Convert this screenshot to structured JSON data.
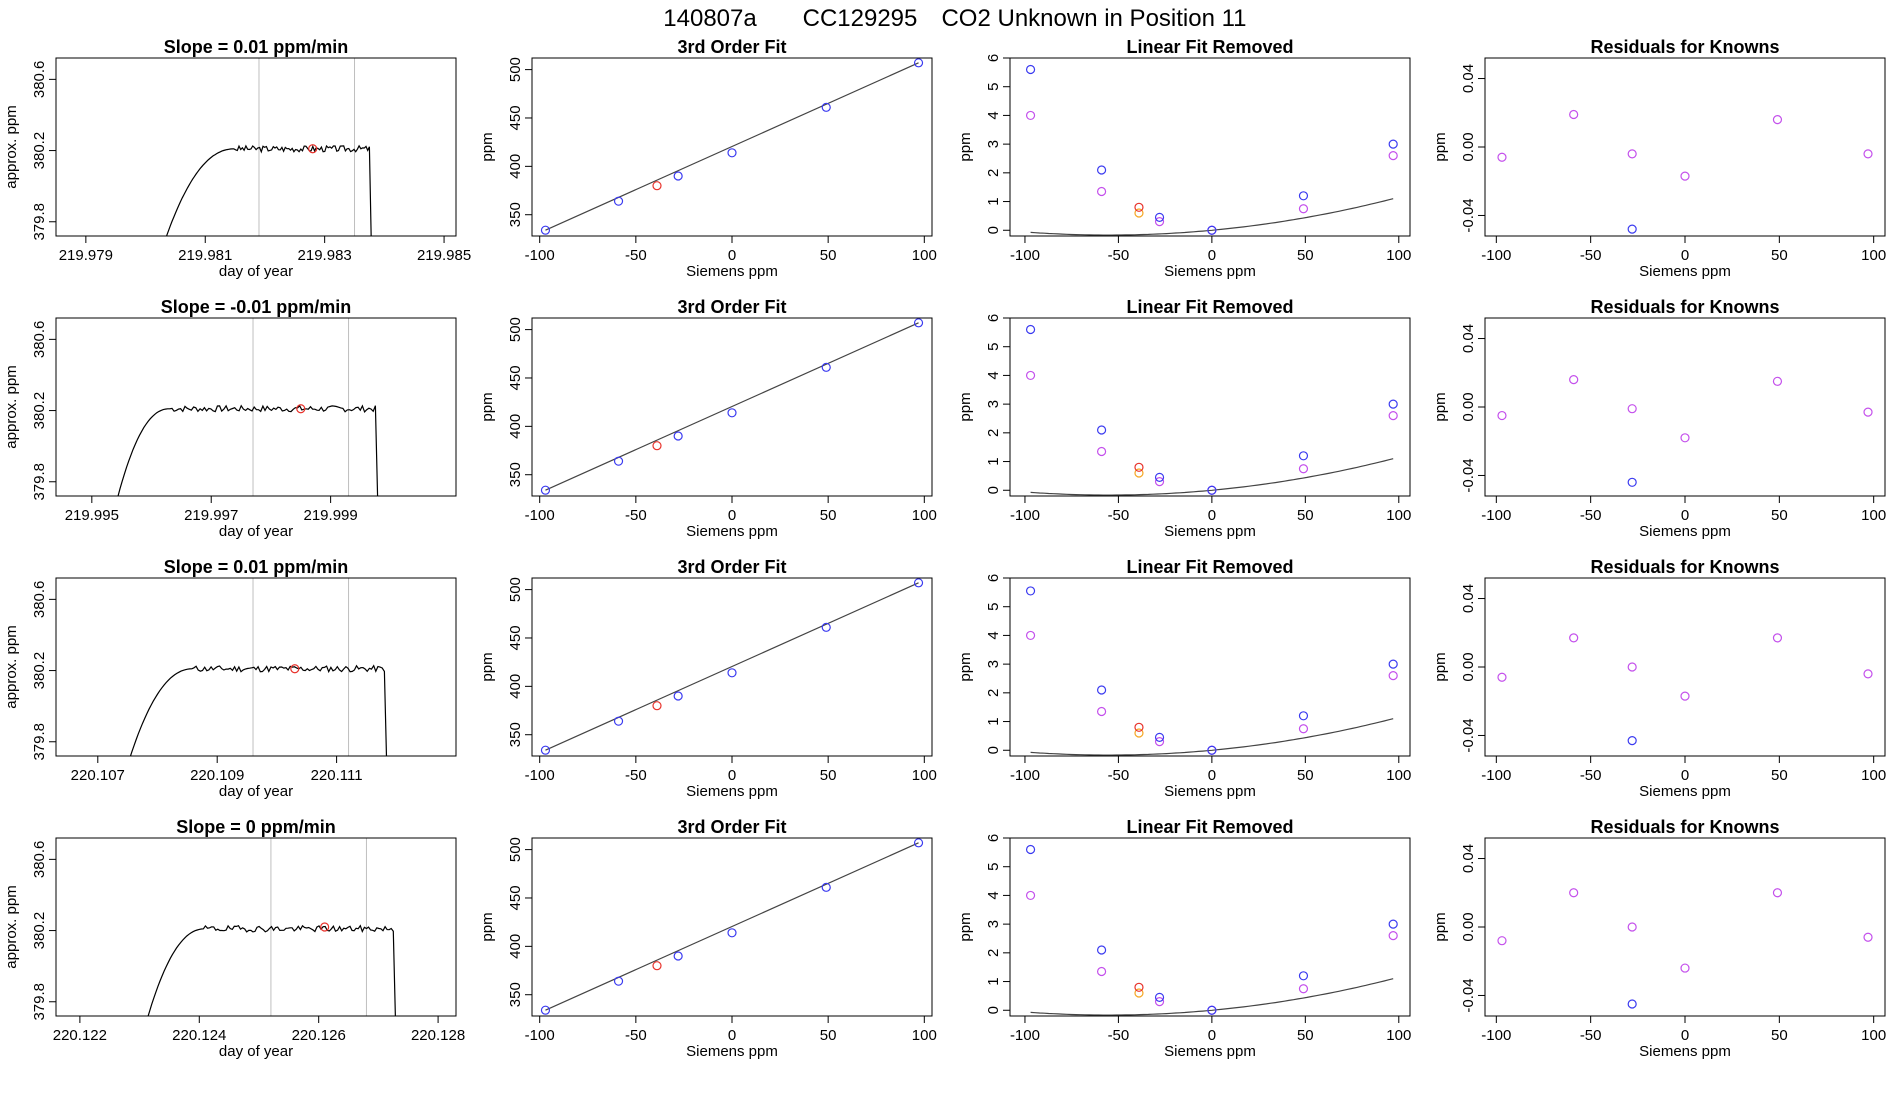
{
  "figure": {
    "title_parts": [
      "140807a",
      "CC129295",
      "CO2 Unknown in Position  11"
    ]
  },
  "colors": {
    "axis": "#000000",
    "trace": "#000000",
    "vline": "#bfbfbf",
    "point_red": "#e8312a",
    "point_blue": "#3a3af0",
    "point_magenta": "#c450ec",
    "point_orange": "#f5a623",
    "curve": "#444444"
  },
  "chart_data": [
    {
      "type": "line",
      "row": 1,
      "title": "Slope =  0.01  ppm/min",
      "xlabel": "day of year",
      "ylabel": "approx. ppm",
      "x_ticks": [
        "219.979",
        "219.981",
        "219.983",
        "219.985"
      ],
      "y_ticks": [
        "379.8",
        "380.2",
        "380.6"
      ],
      "xlim": [
        219.9785,
        219.9852
      ],
      "ylim": [
        379.72,
        380.72
      ],
      "vlines": [
        219.9819,
        219.9835
      ],
      "marker": {
        "x": 219.9828,
        "y": 380.21
      },
      "trace_start": 219.9803,
      "trace_plateau_start": 219.9815,
      "trace_end": 219.98375,
      "plateau": 380.21,
      "seed": 3
    },
    {
      "type": "line",
      "row": 2,
      "title": "Slope =  -0.01  ppm/min",
      "xlabel": "day of year",
      "ylabel": "approx. ppm",
      "x_ticks": [
        "219.995",
        "219.997",
        "219.999"
      ],
      "y_ticks": [
        "379.8",
        "380.2",
        "380.6"
      ],
      "xlim": [
        219.9944,
        220.0011
      ],
      "ylim": [
        379.72,
        380.72
      ],
      "vlines": [
        219.9977,
        219.9993
      ],
      "marker": {
        "x": 219.9985,
        "y": 380.21
      },
      "trace_start": 219.9954,
      "trace_plateau_start": 219.9963,
      "trace_end": 219.99975,
      "plateau": 380.21,
      "seed": 7
    },
    {
      "type": "line",
      "row": 3,
      "title": "Slope =  0.01  ppm/min",
      "xlabel": "day of year",
      "ylabel": "approx. ppm",
      "x_ticks": [
        "220.107",
        "220.109",
        "220.111"
      ],
      "y_ticks": [
        "379.8",
        "380.2",
        "380.6"
      ],
      "xlim": [
        220.1063,
        220.113
      ],
      "ylim": [
        379.72,
        380.72
      ],
      "vlines": [
        220.1096,
        220.1112
      ],
      "marker": {
        "x": 220.1103,
        "y": 380.21
      },
      "trace_start": 220.1075,
      "trace_plateau_start": 220.1086,
      "trace_end": 220.1118,
      "plateau": 380.21,
      "seed": 11
    },
    {
      "type": "line",
      "row": 4,
      "title": "Slope =  0  ppm/min",
      "xlabel": "day of year",
      "ylabel": "approx. ppm",
      "x_ticks": [
        "220.122",
        "220.124",
        "220.126",
        "220.128"
      ],
      "y_ticks": [
        "379.8",
        "380.2",
        "380.6"
      ],
      "xlim": [
        220.1216,
        220.1283
      ],
      "ylim": [
        379.72,
        380.72
      ],
      "vlines": [
        220.1252,
        220.1268
      ],
      "marker": {
        "x": 220.1261,
        "y": 380.22
      },
      "trace_start": 220.1231,
      "trace_plateau_start": 220.1241,
      "trace_end": 220.12725,
      "plateau": 380.21,
      "seed": 19
    },
    {
      "type": "line",
      "row": 1,
      "title": "3rd Order Fit",
      "xlabel": "Siemens ppm",
      "ylabel": "ppm",
      "x_ticks": [
        "-100",
        "-50",
        "0",
        "50",
        "100"
      ],
      "y_ticks": [
        "350",
        "400",
        "450",
        "500"
      ],
      "xlim": [
        -104,
        104
      ],
      "ylim": [
        328,
        512
      ],
      "fit_line": [
        [
          -97,
          334
        ],
        [
          97,
          507
        ]
      ],
      "points_blue": [
        [
          -97,
          334
        ],
        [
          -59,
          364
        ],
        [
          -28,
          390
        ],
        [
          0,
          414
        ],
        [
          49,
          461
        ],
        [
          97,
          507
        ]
      ],
      "points_red": [
        [
          -39,
          380
        ]
      ]
    },
    {
      "type": "line",
      "row": 2,
      "title": "3rd Order Fit",
      "xlabel": "Siemens ppm",
      "ylabel": "ppm",
      "x_ticks": [
        "-100",
        "-50",
        "0",
        "50",
        "100"
      ],
      "y_ticks": [
        "350",
        "400",
        "450",
        "500"
      ],
      "xlim": [
        -104,
        104
      ],
      "ylim": [
        328,
        512
      ],
      "fit_line": [
        [
          -97,
          334
        ],
        [
          97,
          507
        ]
      ],
      "points_blue": [
        [
          -97,
          334
        ],
        [
          -59,
          364
        ],
        [
          -28,
          390
        ],
        [
          0,
          414
        ],
        [
          49,
          461
        ],
        [
          97,
          507
        ]
      ],
      "points_red": [
        [
          -39,
          380
        ]
      ]
    },
    {
      "type": "line",
      "row": 3,
      "title": "3rd Order Fit",
      "xlabel": "Siemens ppm",
      "ylabel": "ppm",
      "x_ticks": [
        "-100",
        "-50",
        "0",
        "50",
        "100"
      ],
      "y_ticks": [
        "350",
        "400",
        "450",
        "500"
      ],
      "xlim": [
        -104,
        104
      ],
      "ylim": [
        328,
        512
      ],
      "fit_line": [
        [
          -97,
          334
        ],
        [
          97,
          507
        ]
      ],
      "points_blue": [
        [
          -97,
          334
        ],
        [
          -59,
          364
        ],
        [
          -28,
          390
        ],
        [
          0,
          414
        ],
        [
          49,
          461
        ],
        [
          97,
          507
        ]
      ],
      "points_red": [
        [
          -39,
          380
        ]
      ]
    },
    {
      "type": "line",
      "row": 4,
      "title": "3rd Order Fit",
      "xlabel": "Siemens ppm",
      "ylabel": "ppm",
      "x_ticks": [
        "-100",
        "-50",
        "0",
        "50",
        "100"
      ],
      "y_ticks": [
        "350",
        "400",
        "450",
        "500"
      ],
      "xlim": [
        -104,
        104
      ],
      "ylim": [
        328,
        512
      ],
      "fit_line": [
        [
          -97,
          334
        ],
        [
          97,
          507
        ]
      ],
      "points_blue": [
        [
          -97,
          334
        ],
        [
          -59,
          364
        ],
        [
          -28,
          390
        ],
        [
          0,
          414
        ],
        [
          49,
          461
        ],
        [
          97,
          507
        ]
      ],
      "points_red": [
        [
          -39,
          380
        ]
      ]
    },
    {
      "type": "scatter",
      "row": 1,
      "title": "Linear Fit Removed",
      "xlabel": "Siemens ppm",
      "ylabel": "ppm",
      "x_ticks": [
        "-100",
        "-50",
        "0",
        "50",
        "100"
      ],
      "y_ticks": [
        "0",
        "1",
        "2",
        "3",
        "4",
        "5",
        "6"
      ],
      "xlim": [
        -108,
        106
      ],
      "ylim": [
        -0.2,
        6.0
      ],
      "curve_poly": [
        0.0,
        0.00605,
        5.45e-05
      ],
      "curve_range": [
        -97,
        97
      ],
      "points_blue": [
        [
          -97,
          5.6
        ],
        [
          -59,
          2.1
        ],
        [
          -28,
          0.45
        ],
        [
          0,
          0.0
        ],
        [
          49,
          1.2
        ],
        [
          97,
          3.0
        ]
      ],
      "points_magenta": [
        [
          -97,
          4.0
        ],
        [
          -59,
          1.35
        ],
        [
          -28,
          0.3
        ],
        [
          0,
          0.0
        ],
        [
          49,
          0.75
        ],
        [
          97,
          2.6
        ]
      ],
      "points_orange": [
        [
          -39,
          0.6
        ]
      ],
      "points_red": [
        [
          -39,
          0.8
        ]
      ]
    },
    {
      "type": "scatter",
      "row": 2,
      "title": "Linear Fit Removed",
      "xlabel": "Siemens ppm",
      "ylabel": "ppm",
      "x_ticks": [
        "-100",
        "-50",
        "0",
        "50",
        "100"
      ],
      "y_ticks": [
        "0",
        "1",
        "2",
        "3",
        "4",
        "5",
        "6"
      ],
      "xlim": [
        -108,
        106
      ],
      "ylim": [
        -0.2,
        6.0
      ],
      "curve_poly": [
        0.0,
        0.00605,
        5.45e-05
      ],
      "curve_range": [
        -97,
        97
      ],
      "points_blue": [
        [
          -97,
          5.6
        ],
        [
          -59,
          2.1
        ],
        [
          -28,
          0.45
        ],
        [
          0,
          0.0
        ],
        [
          49,
          1.2
        ],
        [
          97,
          3.0
        ]
      ],
      "points_magenta": [
        [
          -97,
          4.0
        ],
        [
          -59,
          1.35
        ],
        [
          -28,
          0.3
        ],
        [
          0,
          0.0
        ],
        [
          49,
          0.75
        ],
        [
          97,
          2.6
        ]
      ],
      "points_orange": [
        [
          -39,
          0.6
        ]
      ],
      "points_red": [
        [
          -39,
          0.8
        ]
      ]
    },
    {
      "type": "scatter",
      "row": 3,
      "title": "Linear Fit Removed",
      "xlabel": "Siemens ppm",
      "ylabel": "ppm",
      "x_ticks": [
        "-100",
        "-50",
        "0",
        "50",
        "100"
      ],
      "y_ticks": [
        "0",
        "1",
        "2",
        "3",
        "4",
        "5",
        "6"
      ],
      "xlim": [
        -108,
        106
      ],
      "ylim": [
        -0.2,
        6.0
      ],
      "curve_poly": [
        0.0,
        0.00605,
        5.45e-05
      ],
      "curve_range": [
        -97,
        97
      ],
      "points_blue": [
        [
          -97,
          5.55
        ],
        [
          -59,
          2.1
        ],
        [
          -28,
          0.45
        ],
        [
          0,
          0.0
        ],
        [
          49,
          1.2
        ],
        [
          97,
          3.0
        ]
      ],
      "points_magenta": [
        [
          -97,
          4.0
        ],
        [
          -59,
          1.35
        ],
        [
          -28,
          0.3
        ],
        [
          0,
          0.0
        ],
        [
          49,
          0.75
        ],
        [
          97,
          2.6
        ]
      ],
      "points_orange": [
        [
          -39,
          0.6
        ]
      ],
      "points_red": [
        [
          -39,
          0.8
        ]
      ]
    },
    {
      "type": "scatter",
      "row": 4,
      "title": "Linear Fit Removed",
      "xlabel": "Siemens ppm",
      "ylabel": "ppm",
      "x_ticks": [
        "-100",
        "-50",
        "0",
        "50",
        "100"
      ],
      "y_ticks": [
        "0",
        "1",
        "2",
        "3",
        "4",
        "5",
        "6"
      ],
      "xlim": [
        -108,
        106
      ],
      "ylim": [
        -0.2,
        6.0
      ],
      "curve_poly": [
        0.0,
        0.00605,
        5.45e-05
      ],
      "curve_range": [
        -97,
        97
      ],
      "points_blue": [
        [
          -97,
          5.6
        ],
        [
          -59,
          2.1
        ],
        [
          -28,
          0.45
        ],
        [
          0,
          0.0
        ],
        [
          49,
          1.2
        ],
        [
          97,
          3.0
        ]
      ],
      "points_magenta": [
        [
          -97,
          4.0
        ],
        [
          -59,
          1.35
        ],
        [
          -28,
          0.3
        ],
        [
          0,
          0.0
        ],
        [
          49,
          0.75
        ],
        [
          97,
          2.6
        ]
      ],
      "points_orange": [
        [
          -39,
          0.6
        ]
      ],
      "points_red": [
        [
          -39,
          0.8
        ]
      ]
    },
    {
      "type": "scatter",
      "row": 1,
      "title": "Residuals for Knowns",
      "xlabel": "Siemens ppm",
      "ylabel": "ppm",
      "x_ticks": [
        "-100",
        "-50",
        "0",
        "50",
        "100"
      ],
      "y_ticks": [
        "-0.04",
        "0.00",
        "0.04"
      ],
      "xlim": [
        -106,
        106
      ],
      "ylim": [
        -0.052,
        0.052
      ],
      "points_magenta": [
        [
          -97,
          -0.006
        ],
        [
          -59,
          0.019
        ],
        [
          -28,
          -0.004
        ],
        [
          0,
          -0.017
        ],
        [
          49,
          0.016
        ],
        [
          97,
          -0.004
        ]
      ],
      "points_blue": [
        [
          -28,
          -0.048
        ]
      ]
    },
    {
      "type": "scatter",
      "row": 2,
      "title": "Residuals for Knowns",
      "xlabel": "Siemens ppm",
      "ylabel": "ppm",
      "x_ticks": [
        "-100",
        "-50",
        "0",
        "50",
        "100"
      ],
      "y_ticks": [
        "-0.04",
        "0.00",
        "0.04"
      ],
      "xlim": [
        -106,
        106
      ],
      "ylim": [
        -0.052,
        0.052
      ],
      "points_magenta": [
        [
          -97,
          -0.005
        ],
        [
          -59,
          0.016
        ],
        [
          -28,
          -0.001
        ],
        [
          0,
          -0.018
        ],
        [
          49,
          0.015
        ],
        [
          97,
          -0.003
        ]
      ],
      "points_blue": [
        [
          -28,
          -0.044
        ]
      ]
    },
    {
      "type": "scatter",
      "row": 3,
      "title": "Residuals for Knowns",
      "xlabel": "Siemens ppm",
      "ylabel": "ppm",
      "x_ticks": [
        "-100",
        "-50",
        "0",
        "50",
        "100"
      ],
      "y_ticks": [
        "-0.04",
        "0.00",
        "0.04"
      ],
      "xlim": [
        -106,
        106
      ],
      "ylim": [
        -0.052,
        0.052
      ],
      "points_magenta": [
        [
          -97,
          -0.006
        ],
        [
          -59,
          0.017
        ],
        [
          -28,
          0.0
        ],
        [
          0,
          -0.017
        ],
        [
          49,
          0.017
        ],
        [
          97,
          -0.004
        ]
      ],
      "points_blue": [
        [
          -28,
          -0.043
        ]
      ]
    },
    {
      "type": "scatter",
      "row": 4,
      "title": "Residuals for Knowns",
      "xlabel": "Siemens ppm",
      "ylabel": "ppm",
      "x_ticks": [
        "-100",
        "-50",
        "0",
        "50",
        "100"
      ],
      "y_ticks": [
        "-0.04",
        "0.00",
        "0.04"
      ],
      "xlim": [
        -106,
        106
      ],
      "ylim": [
        -0.052,
        0.052
      ],
      "points_magenta": [
        [
          -97,
          -0.008
        ],
        [
          -59,
          0.02
        ],
        [
          -28,
          0.0
        ],
        [
          0,
          -0.024
        ],
        [
          49,
          0.02
        ],
        [
          97,
          -0.006
        ]
      ],
      "points_blue": [
        [
          -28,
          -0.045
        ]
      ]
    }
  ]
}
